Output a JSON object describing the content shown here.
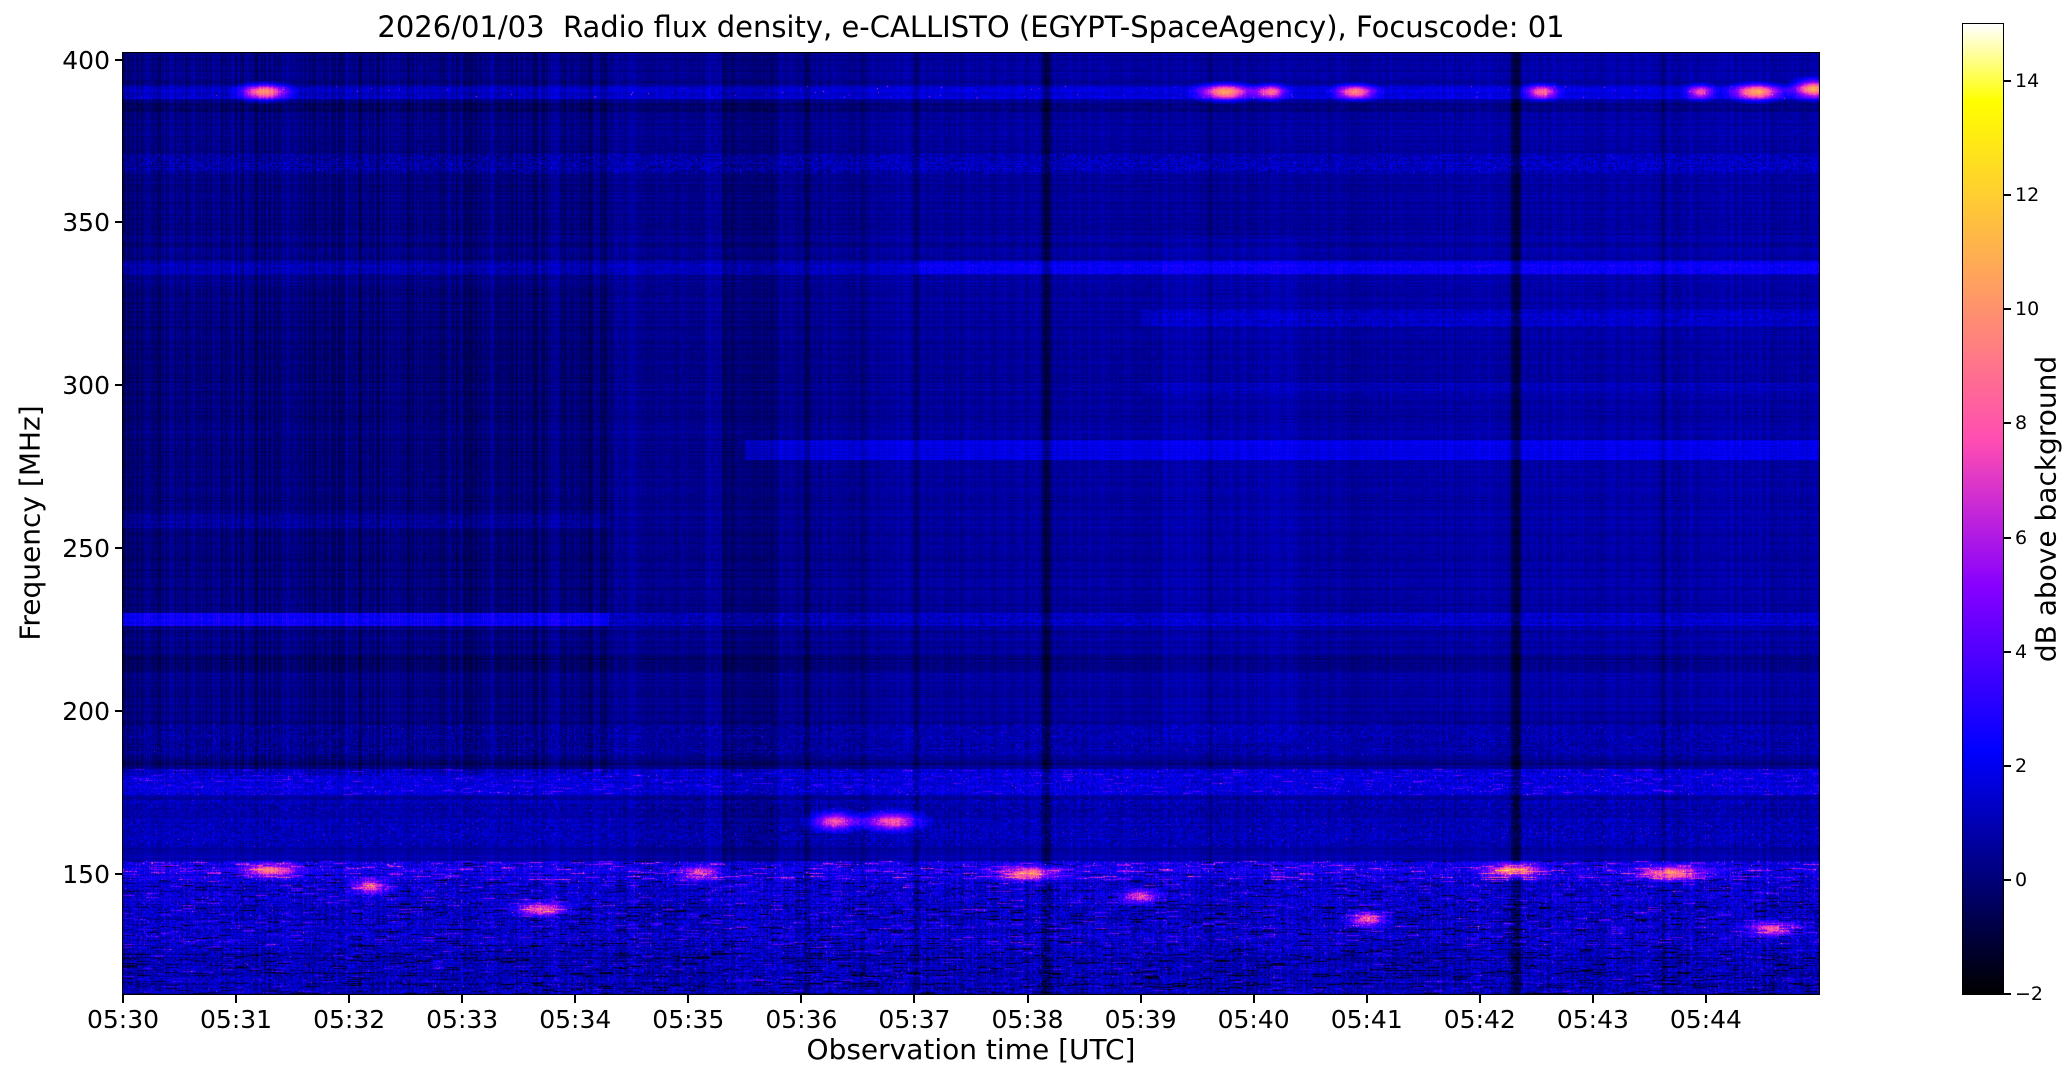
{
  "chart_data": {
    "type": "heatmap",
    "title": "2026/01/03  Radio flux density, e-CALLISTO (EGYPT-SpaceAgency), Focuscode: 01",
    "xlabel": "Observation time [UTC]",
    "ylabel": "Frequency [MHz]",
    "x_tick_labels": [
      "05:30",
      "05:31",
      "05:32",
      "05:33",
      "05:34",
      "05:35",
      "05:36",
      "05:37",
      "05:38",
      "05:39",
      "05:40",
      "05:41",
      "05:42",
      "05:43",
      "05:44"
    ],
    "x_tick_minutes": [
      0,
      1,
      2,
      3,
      4,
      5,
      6,
      7,
      8,
      9,
      10,
      11,
      12,
      13,
      14
    ],
    "y_tick_labels": [
      "400",
      "350",
      "300",
      "250",
      "200",
      "150"
    ],
    "y_tick_values": [
      400,
      350,
      300,
      250,
      200,
      150
    ],
    "x_range_minutes": [
      0,
      15
    ],
    "start_time_utc": "05:30",
    "y_range_mhz": [
      113,
      402
    ],
    "grid": false,
    "colorbar": {
      "label": "dB above background",
      "tick_labels": [
        "14",
        "12",
        "10",
        "8",
        "6",
        "4",
        "2",
        "0",
        "−2"
      ],
      "tick_values": [
        14,
        12,
        10,
        8,
        6,
        4,
        2,
        0,
        -2
      ],
      "vmin": -2,
      "vmax": 15,
      "colormap": "gnuplot2",
      "gradient_sample_hex": [
        "#000000",
        "#000080",
        "#0000ff",
        "#6400ff",
        "#c729d6",
        "#ff6996",
        "#ffa857",
        "#ffe817",
        "#ffffff"
      ]
    },
    "heatmap": {
      "base_db": 0.6,
      "stripe_db": 0.35,
      "row_variation_db": 0.3,
      "default_noise_db": 0.35,
      "regions": [
        {
          "t": [
            0,
            4.35
          ],
          "f": [
            180,
            402
          ],
          "amp": -0.45,
          "stripe": 1.2
        },
        {
          "t": [
            0,
            4.35
          ],
          "f": [
            235,
            330
          ],
          "amp": -0.15
        },
        {
          "t": [
            4.55,
            5.15
          ],
          "f": [
            113,
            402
          ],
          "amp": -0.35
        },
        {
          "t": [
            5.3,
            5.8
          ],
          "f": [
            150,
            402
          ],
          "amp": -0.7
        },
        {
          "t": [
            5.8,
            6.6
          ],
          "f": [
            150,
            402
          ],
          "amp": -0.25
        },
        {
          "t": [
            9.2,
            10.4
          ],
          "f": [
            190,
            345
          ],
          "amp": 0.25
        },
        {
          "t": [
            11.2,
            15
          ],
          "f": [
            200,
            402
          ],
          "amp": 0.15
        },
        {
          "t": [
            0,
            15
          ],
          "f": [
            113,
            156
          ],
          "amp": 0.2
        }
      ],
      "vlines": [
        {
          "t": 8.17,
          "w": 0.08,
          "amp": -1.6
        },
        {
          "t": 12.32,
          "w": 0.08,
          "amp": -1.8
        },
        {
          "t": 6.05,
          "w": 0.05,
          "amp": -0.9
        },
        {
          "t": 7.02,
          "w": 0.04,
          "amp": -0.7
        },
        {
          "t": 9.62,
          "w": 0.04,
          "amp": -0.6
        },
        {
          "t": 13.62,
          "w": 0.04,
          "amp": -0.8
        }
      ],
      "bands": [
        {
          "f": [
            388,
            392
          ],
          "amp": 1.0,
          "noise": 0.6,
          "speckle": {
            "p": 0.004,
            "amp": 6
          }
        },
        {
          "f": [
            384,
            387
          ],
          "amp": -0.4,
          "noise": 0.5
        },
        {
          "f": [
            365,
            371
          ],
          "amp": 0.5,
          "noise": 1.1,
          "speckle": {
            "p": 0.012,
            "amp": 2.5
          }
        },
        {
          "f": [
            334,
            338
          ],
          "amp": 0.8,
          "noise": 0.6
        },
        {
          "f": [
            334,
            338
          ],
          "t": [
            7,
            15
          ],
          "amp": 0.8
        },
        {
          "f": [
            318,
            323
          ],
          "t": [
            9,
            15
          ],
          "amp": 0.6,
          "noise": 0.8
        },
        {
          "f": [
            297,
            301
          ],
          "t": [
            9,
            15
          ],
          "amp": 0.3,
          "noise": 0.5
        },
        {
          "f": [
            277,
            283
          ],
          "t": [
            5.5,
            15
          ],
          "amp": 1.2,
          "noise": 0.4
        },
        {
          "f": [
            256,
            260
          ],
          "t": [
            0,
            4.3
          ],
          "amp": 0.5,
          "noise": 0.6
        },
        {
          "f": [
            226,
            230
          ],
          "t": [
            0,
            4.3
          ],
          "amp": 2.2,
          "noise": 0.5
        },
        {
          "f": [
            226,
            230
          ],
          "t": [
            4.3,
            15
          ],
          "amp": 0.7,
          "noise": 0.8,
          "speckle": {
            "p": 0.01,
            "amp": 2
          }
        },
        {
          "f": [
            212,
            217
          ],
          "amp": -0.5,
          "noise": 0.3
        },
        {
          "f": [
            186,
            196
          ],
          "amp": 0.2,
          "noise": 0.9,
          "speckle": {
            "p": 0.012,
            "amp": 3
          }
        },
        {
          "f": [
            183,
            185
          ],
          "amp": -0.4
        },
        {
          "f": [
            174,
            182
          ],
          "amp": 1.1,
          "noise": 1.1,
          "speckle": {
            "p": 0.02,
            "amp": 4
          },
          "runs": {
            "p": 0.06,
            "amp": 2.5,
            "len": 10
          }
        },
        {
          "f": [
            168,
            173
          ],
          "amp": 0.3,
          "noise": 1.0,
          "speckle": {
            "p": 0.01,
            "amp": 3
          }
        },
        {
          "f": [
            158,
            167
          ],
          "amp": 0.5,
          "noise": 1.1,
          "speckle": {
            "p": 0.012,
            "amp": 3.5
          }
        },
        {
          "f": [
            148,
            154
          ],
          "amp": 1.2,
          "noise": 1.4,
          "rowvar": 1.0,
          "stripe": 0.8,
          "speckle": {
            "p": 0.03,
            "amp": 5
          },
          "runs": {
            "p": 0.1,
            "amp": 4,
            "len": 14
          },
          "darkruns": {
            "p": 0.06,
            "amp": -2.8,
            "len": 10
          }
        },
        {
          "f": [
            128,
            148
          ],
          "amp": 0.6,
          "noise": 1.6,
          "rowvar": 1.2,
          "stripe": 0.8,
          "speckle": {
            "p": 0.02,
            "amp": 4
          },
          "runs": {
            "p": 0.06,
            "amp": 3,
            "len": 12
          },
          "darkruns": {
            "p": 0.08,
            "amp": -2.6,
            "len": 12
          }
        },
        {
          "f": [
            113,
            128
          ],
          "amp": 0.2,
          "noise": 1.5,
          "rowvar": 1.2,
          "stripe": 0.8,
          "speckle": {
            "p": 0.015,
            "amp": 4
          },
          "runs": {
            "p": 0.05,
            "amp": 2.5,
            "len": 10
          },
          "darkruns": {
            "p": 0.1,
            "amp": -2.6,
            "len": 14
          }
        }
      ],
      "blobs": [
        {
          "t": 1.25,
          "f": 390,
          "w": 0.18,
          "h": 2.2,
          "amp": 9
        },
        {
          "t": 9.75,
          "f": 390,
          "w": 0.2,
          "h": 2.2,
          "amp": 9
        },
        {
          "t": 10.15,
          "f": 390,
          "w": 0.12,
          "h": 2.0,
          "amp": 7
        },
        {
          "t": 10.9,
          "f": 390,
          "w": 0.15,
          "h": 2.0,
          "amp": 8
        },
        {
          "t": 12.55,
          "f": 390,
          "w": 0.12,
          "h": 2.0,
          "amp": 7
        },
        {
          "t": 13.95,
          "f": 390,
          "w": 0.1,
          "h": 2.0,
          "amp": 6
        },
        {
          "t": 14.45,
          "f": 390,
          "w": 0.18,
          "h": 2.2,
          "amp": 9
        },
        {
          "t": 14.95,
          "f": 391,
          "w": 0.15,
          "h": 2.5,
          "amp": 9
        },
        {
          "t": 6.3,
          "f": 166,
          "w": 0.18,
          "h": 2.5,
          "amp": 7
        },
        {
          "t": 6.8,
          "f": 166,
          "w": 0.22,
          "h": 2.5,
          "amp": 7
        },
        {
          "t": 1.3,
          "f": 151,
          "w": 0.2,
          "h": 2.0,
          "amp": 7
        },
        {
          "t": 2.2,
          "f": 146,
          "w": 0.15,
          "h": 2.0,
          "amp": 6
        },
        {
          "t": 3.7,
          "f": 139,
          "w": 0.2,
          "h": 2.0,
          "amp": 7
        },
        {
          "t": 5.1,
          "f": 150,
          "w": 0.15,
          "h": 2.0,
          "amp": 6
        },
        {
          "t": 8.0,
          "f": 150,
          "w": 0.25,
          "h": 2.0,
          "amp": 7
        },
        {
          "t": 9.0,
          "f": 143,
          "w": 0.15,
          "h": 2.0,
          "amp": 6
        },
        {
          "t": 11.0,
          "f": 136,
          "w": 0.15,
          "h": 2.0,
          "amp": 7
        },
        {
          "t": 12.3,
          "f": 151,
          "w": 0.2,
          "h": 2.0,
          "amp": 8
        },
        {
          "t": 13.7,
          "f": 150,
          "w": 0.25,
          "h": 2.0,
          "amp": 8
        },
        {
          "t": 14.6,
          "f": 133,
          "w": 0.2,
          "h": 2.0,
          "amp": 7
        }
      ]
    }
  }
}
